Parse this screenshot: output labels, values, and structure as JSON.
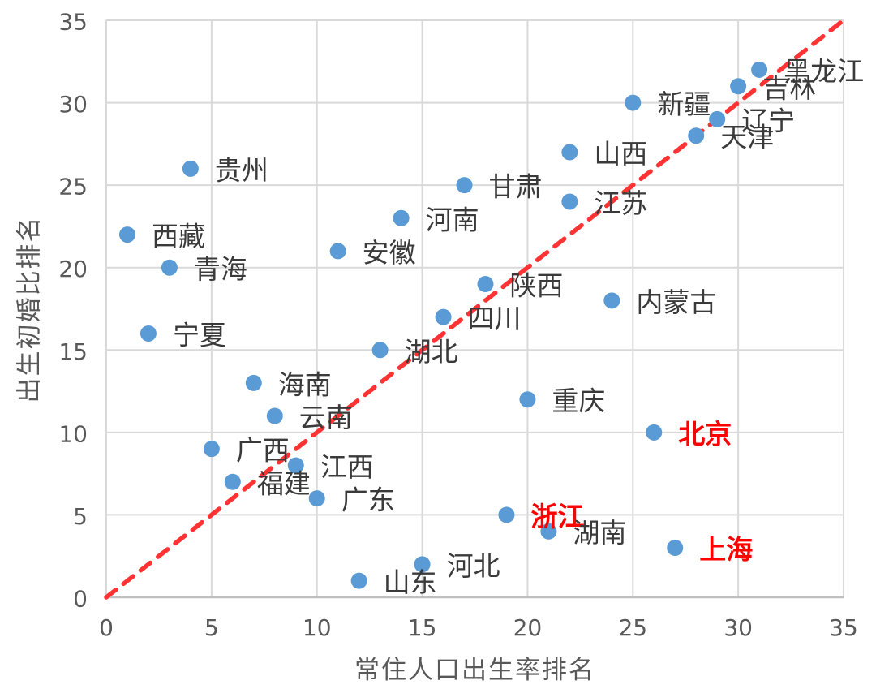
{
  "chart_data": {
    "type": "scatter",
    "title": "",
    "xlabel": "常住人口出生率排名",
    "ylabel": "出生初婚比排名",
    "xlim": [
      0,
      35
    ],
    "ylim": [
      0,
      35
    ],
    "xticks": [
      0,
      5,
      10,
      15,
      20,
      25,
      30,
      35
    ],
    "yticks": [
      0,
      5,
      10,
      15,
      20,
      25,
      30,
      35
    ],
    "grid": true,
    "legend": "none",
    "reference_line": {
      "type": "diagonal",
      "from": [
        0,
        0
      ],
      "to": [
        35,
        35
      ],
      "style": "dashed",
      "color": "#ff3333"
    },
    "series": [
      {
        "name": "provinces",
        "marker": "circle",
        "marker_color": "#5b9bd5",
        "points": [
          {
            "label": "西藏",
            "x": 1,
            "y": 22,
            "highlight": false
          },
          {
            "label": "宁夏",
            "x": 2,
            "y": 16,
            "highlight": false
          },
          {
            "label": "青海",
            "x": 3,
            "y": 20,
            "highlight": false
          },
          {
            "label": "贵州",
            "x": 4,
            "y": 26,
            "highlight": false
          },
          {
            "label": "广西",
            "x": 5,
            "y": 9,
            "highlight": false
          },
          {
            "label": "福建",
            "x": 6,
            "y": 7,
            "highlight": false
          },
          {
            "label": "海南",
            "x": 7,
            "y": 13,
            "highlight": false
          },
          {
            "label": "云南",
            "x": 8,
            "y": 11,
            "highlight": false
          },
          {
            "label": "江西",
            "x": 9,
            "y": 8,
            "highlight": false
          },
          {
            "label": "广东",
            "x": 10,
            "y": 6,
            "highlight": false
          },
          {
            "label": "安徽",
            "x": 11,
            "y": 21,
            "highlight": false
          },
          {
            "label": "山东",
            "x": 12,
            "y": 1,
            "highlight": false
          },
          {
            "label": "湖北",
            "x": 13,
            "y": 15,
            "highlight": false
          },
          {
            "label": "河南",
            "x": 14,
            "y": 23,
            "highlight": false
          },
          {
            "label": "河北",
            "x": 15,
            "y": 2,
            "highlight": false
          },
          {
            "label": "四川",
            "x": 16,
            "y": 17,
            "highlight": false
          },
          {
            "label": "甘肃",
            "x": 17,
            "y": 25,
            "highlight": false
          },
          {
            "label": "陕西",
            "x": 18,
            "y": 19,
            "highlight": false
          },
          {
            "label": "浙江",
            "x": 19,
            "y": 5,
            "highlight": true
          },
          {
            "label": "重庆",
            "x": 20,
            "y": 12,
            "highlight": false
          },
          {
            "label": "湖南",
            "x": 21,
            "y": 4,
            "highlight": false
          },
          {
            "label": "山西",
            "x": 22,
            "y": 27,
            "highlight": false
          },
          {
            "label": "江苏",
            "x": 22,
            "y": 24,
            "highlight": false
          },
          {
            "label": "内蒙古",
            "x": 24,
            "y": 18,
            "highlight": false
          },
          {
            "label": "新疆",
            "x": 25,
            "y": 30,
            "highlight": false
          },
          {
            "label": "北京",
            "x": 26,
            "y": 10,
            "highlight": true
          },
          {
            "label": "上海",
            "x": 27,
            "y": 3,
            "highlight": true
          },
          {
            "label": "天津",
            "x": 28,
            "y": 28,
            "highlight": false
          },
          {
            "label": "辽宁",
            "x": 29,
            "y": 29,
            "highlight": false
          },
          {
            "label": "吉林",
            "x": 30,
            "y": 31,
            "highlight": false
          },
          {
            "label": "黑龙江",
            "x": 31,
            "y": 32,
            "highlight": false
          }
        ]
      }
    ],
    "highlighted_labels": [
      "浙江",
      "北京",
      "上海"
    ],
    "colors": {
      "marker": "#5b9bd5",
      "highlight_text": "#ff0000",
      "label_text": "#3a3a3a",
      "tick_text": "#595959",
      "gridline": "#d9d9d9",
      "axis_line": "#bfbfbf",
      "reference_line": "#ff3333"
    }
  }
}
